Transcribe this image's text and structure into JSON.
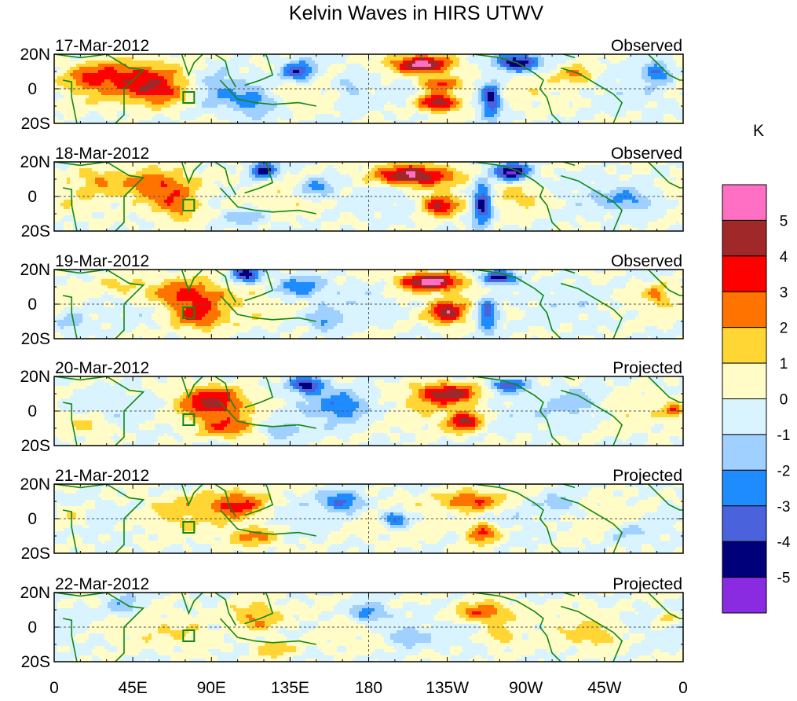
{
  "chart_data": {
    "type": "heatmap",
    "title": "Kelvin Waves in HIRS UTWV",
    "colorbar": {
      "unit": "K",
      "levels": [
        5,
        4,
        3,
        2,
        1,
        0,
        -1,
        -2,
        -3,
        -4,
        -5
      ],
      "colors": [
        "#ff6fc4",
        "#a02828",
        "#ff0000",
        "#ff7300",
        "#ffd633",
        "#fffcc8",
        "#d9f4ff",
        "#a0d0ff",
        "#1e8cff",
        "#4a62dc",
        "#00007a",
        "#8a2be2"
      ]
    },
    "x_ticks": [
      "0",
      "45E",
      "90E",
      "135E",
      "180",
      "135W",
      "90W",
      "45W",
      "0"
    ],
    "y_ticks": [
      "20N",
      "0",
      "20S"
    ],
    "panels": [
      {
        "date": "17-Mar-2012",
        "status": "Observed"
      },
      {
        "date": "18-Mar-2012",
        "status": "Observed"
      },
      {
        "date": "19-Mar-2012",
        "status": "Observed"
      },
      {
        "date": "20-Mar-2012",
        "status": "Projected"
      },
      {
        "date": "21-Mar-2012",
        "status": "Projected"
      },
      {
        "date": "22-Mar-2012",
        "status": "Projected"
      }
    ],
    "anomalies": [
      [
        {
          "lon": 45,
          "lat": 8,
          "amp": 2.8,
          "lonw": 30,
          "latw": 9
        },
        {
          "lon": 60,
          "lat": -2,
          "amp": 3.2,
          "lonw": 18,
          "latw": 8
        },
        {
          "lon": 20,
          "lat": 5,
          "amp": 1.5,
          "lonw": 15,
          "latw": 8
        },
        {
          "lon": 115,
          "lat": -8,
          "amp": -2.5,
          "lonw": 12,
          "latw": 8
        },
        {
          "lon": 140,
          "lat": 10,
          "amp": -4.2,
          "lonw": 10,
          "latw": 6
        },
        {
          "lon": 95,
          "lat": 0,
          "amp": -1.5,
          "lonw": 12,
          "latw": 10
        },
        {
          "lon": 210,
          "lat": 14,
          "amp": 5.5,
          "lonw": 18,
          "latw": 5
        },
        {
          "lon": 220,
          "lat": 3,
          "amp": 3.8,
          "lonw": 12,
          "latw": 5
        },
        {
          "lon": 220,
          "lat": -8,
          "amp": 5.2,
          "lonw": 12,
          "latw": 5
        },
        {
          "lon": 250,
          "lat": -6,
          "amp": -4.8,
          "lonw": 6,
          "latw": 10
        },
        {
          "lon": 265,
          "lat": 15,
          "amp": -5.5,
          "lonw": 12,
          "latw": 5
        },
        {
          "lon": 300,
          "lat": 8,
          "amp": 2.2,
          "lonw": 10,
          "latw": 6
        },
        {
          "lon": 345,
          "lat": 10,
          "amp": -3,
          "lonw": 8,
          "latw": 6
        },
        {
          "lon": 170,
          "lat": 0,
          "amp": -1.5,
          "lonw": 10,
          "latw": 12
        }
      ],
      [
        {
          "lon": 60,
          "lat": 6,
          "amp": 3.5,
          "lonw": 22,
          "latw": 9
        },
        {
          "lon": 70,
          "lat": -6,
          "amp": 2.8,
          "lonw": 14,
          "latw": 8
        },
        {
          "lon": 25,
          "lat": 10,
          "amp": 1.5,
          "lonw": 12,
          "latw": 7
        },
        {
          "lon": 120,
          "lat": 15,
          "amp": -4.5,
          "lonw": 8,
          "latw": 5
        },
        {
          "lon": 150,
          "lat": 5,
          "amp": -2.5,
          "lonw": 10,
          "latw": 6
        },
        {
          "lon": 110,
          "lat": -12,
          "amp": -2,
          "lonw": 12,
          "latw": 5
        },
        {
          "lon": 205,
          "lat": 12,
          "amp": 5.5,
          "lonw": 22,
          "latw": 6
        },
        {
          "lon": 220,
          "lat": -5,
          "amp": 4.5,
          "lonw": 10,
          "latw": 6
        },
        {
          "lon": 245,
          "lat": -4,
          "amp": -5,
          "lonw": 6,
          "latw": 12
        },
        {
          "lon": 262,
          "lat": 14,
          "amp": -5.5,
          "lonw": 10,
          "latw": 5
        },
        {
          "lon": 330,
          "lat": -2,
          "amp": -2,
          "lonw": 15,
          "latw": 6
        },
        {
          "lon": 270,
          "lat": 0,
          "amp": 1.2,
          "lonw": 12,
          "latw": 6
        }
      ],
      [
        {
          "lon": 75,
          "lat": 5,
          "amp": 3.8,
          "lonw": 20,
          "latw": 9
        },
        {
          "lon": 82,
          "lat": -8,
          "amp": 3,
          "lonw": 15,
          "latw": 7
        },
        {
          "lon": 40,
          "lat": 10,
          "amp": 1.5,
          "lonw": 15,
          "latw": 7
        },
        {
          "lon": 110,
          "lat": 17,
          "amp": -4.5,
          "lonw": 8,
          "latw": 5
        },
        {
          "lon": 140,
          "lat": 10,
          "amp": -2.8,
          "lonw": 14,
          "latw": 6
        },
        {
          "lon": 155,
          "lat": -10,
          "amp": -2,
          "lonw": 10,
          "latw": 6
        },
        {
          "lon": 215,
          "lat": 13,
          "amp": 5.5,
          "lonw": 18,
          "latw": 5
        },
        {
          "lon": 225,
          "lat": -5,
          "amp": 4.2,
          "lonw": 10,
          "latw": 6
        },
        {
          "lon": 248,
          "lat": -6,
          "amp": -4,
          "lonw": 6,
          "latw": 10
        },
        {
          "lon": 255,
          "lat": 15,
          "amp": -4.8,
          "lonw": 10,
          "latw": 4
        },
        {
          "lon": 10,
          "lat": -10,
          "amp": -2,
          "lonw": 10,
          "latw": 6
        },
        {
          "lon": 345,
          "lat": 5,
          "amp": 2,
          "lonw": 6,
          "latw": 5
        }
      ],
      [
        {
          "lon": 90,
          "lat": 5,
          "amp": 3.8,
          "lonw": 18,
          "latw": 9
        },
        {
          "lon": 100,
          "lat": -10,
          "amp": 2.5,
          "lonw": 15,
          "latw": 6
        },
        {
          "lon": 145,
          "lat": 15,
          "amp": -4.5,
          "lonw": 10,
          "latw": 5
        },
        {
          "lon": 165,
          "lat": 3,
          "amp": -2.5,
          "lonw": 15,
          "latw": 8
        },
        {
          "lon": 130,
          "lat": -12,
          "amp": -2,
          "lonw": 10,
          "latw": 5
        },
        {
          "lon": 225,
          "lat": 10,
          "amp": 4.5,
          "lonw": 18,
          "latw": 6
        },
        {
          "lon": 235,
          "lat": -6,
          "amp": 4,
          "lonw": 10,
          "latw": 6
        },
        {
          "lon": 260,
          "lat": 15,
          "amp": -3.8,
          "lonw": 10,
          "latw": 4
        },
        {
          "lon": 20,
          "lat": -8,
          "amp": 1.8,
          "lonw": 12,
          "latw": 6
        },
        {
          "lon": 355,
          "lat": 0,
          "amp": 3,
          "lonw": 5,
          "latw": 4
        },
        {
          "lon": 300,
          "lat": 5,
          "amp": -1.5,
          "lonw": 15,
          "latw": 8
        }
      ],
      [
        {
          "lon": 105,
          "lat": 8,
          "amp": 3.5,
          "lonw": 18,
          "latw": 8
        },
        {
          "lon": 115,
          "lat": -10,
          "amp": 2.5,
          "lonw": 15,
          "latw": 6
        },
        {
          "lon": 165,
          "lat": 10,
          "amp": -3.5,
          "lonw": 12,
          "latw": 6
        },
        {
          "lon": 195,
          "lat": 0,
          "amp": -4,
          "lonw": 8,
          "latw": 5
        },
        {
          "lon": 70,
          "lat": 5,
          "amp": 1,
          "lonw": 15,
          "latw": 8
        },
        {
          "lon": 240,
          "lat": 10,
          "amp": 3.5,
          "lonw": 18,
          "latw": 6
        },
        {
          "lon": 245,
          "lat": -8,
          "amp": 3.8,
          "lonw": 10,
          "latw": 6
        },
        {
          "lon": 290,
          "lat": 8,
          "amp": -1.8,
          "lonw": 12,
          "latw": 6
        },
        {
          "lon": 10,
          "lat": 0,
          "amp": 1.5,
          "lonw": 10,
          "latw": 8
        },
        {
          "lon": 330,
          "lat": -8,
          "amp": -1.5,
          "lonw": 15,
          "latw": 6
        }
      ],
      [
        {
          "lon": 115,
          "lat": 5,
          "amp": 2.8,
          "lonw": 16,
          "latw": 9
        },
        {
          "lon": 125,
          "lat": -12,
          "amp": 2,
          "lonw": 12,
          "latw": 5
        },
        {
          "lon": 180,
          "lat": 8,
          "amp": -3,
          "lonw": 12,
          "latw": 6
        },
        {
          "lon": 200,
          "lat": -5,
          "amp": -2,
          "lonw": 12,
          "latw": 6
        },
        {
          "lon": 245,
          "lat": 8,
          "amp": 3.5,
          "lonw": 16,
          "latw": 6
        },
        {
          "lon": 255,
          "lat": -5,
          "amp": 2,
          "lonw": 10,
          "latw": 6
        },
        {
          "lon": 40,
          "lat": 12,
          "amp": -2,
          "lonw": 10,
          "latw": 6
        },
        {
          "lon": 80,
          "lat": -5,
          "amp": 0.8,
          "lonw": 15,
          "latw": 8
        },
        {
          "lon": 310,
          "lat": -5,
          "amp": 1.5,
          "lonw": 12,
          "latw": 6
        },
        {
          "lon": 350,
          "lat": 5,
          "amp": 1.8,
          "lonw": 8,
          "latw": 5
        }
      ]
    ],
    "marker": {
      "shape": "square",
      "lon": 77,
      "lat": -5
    }
  }
}
